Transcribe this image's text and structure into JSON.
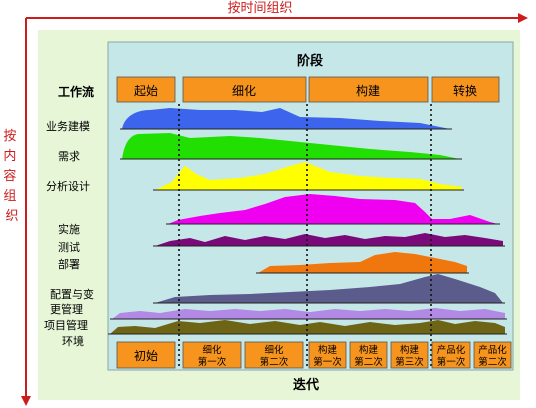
{
  "axes": {
    "time_label": "按时间组织",
    "content_label": "按内容组织"
  },
  "header": {
    "title": "阶段",
    "workflow_label": "工作流"
  },
  "phases": [
    "起始",
    "细化",
    "构建",
    "转换"
  ],
  "workflows": {
    "business_modeling": "业务建模",
    "requirements": "需求",
    "analysis_design": "分析设计",
    "implementation": "实施",
    "test": "测试",
    "deployment": "部署",
    "config_change_line1": "配置与变",
    "config_change_line2": "更管理",
    "project_management": "项目管理",
    "environment": "环境"
  },
  "iterations": [
    {
      "line1": "初始",
      "line2": ""
    },
    {
      "line1": "细化",
      "line2": "第一次"
    },
    {
      "line1": "细化",
      "line2": "第二次"
    },
    {
      "line1": "构建",
      "line2": "第一次"
    },
    {
      "line1": "构建",
      "line2": "第二次"
    },
    {
      "line1": "构建",
      "line2": "第三次"
    },
    {
      "line1": "产品化",
      "line2": "第一次"
    },
    {
      "line1": "产品化",
      "line2": "第二次"
    }
  ],
  "footer": {
    "iteration_label": "迭代"
  },
  "colors": {
    "axis_red": "#cc1d1d",
    "outer_green": "#e6f6d6",
    "inner_cyan": "#c6e7e8",
    "phase_orange": "#f7941d",
    "business_modeling": "#3c64ec",
    "requirements": "#21df00",
    "analysis_design": "#ffff00",
    "implementation": "#f000f0",
    "test": "#7a0a7a",
    "deployment": "#f0770d",
    "config_change": "#5b5b8c",
    "project_management": "#b389e6",
    "environment": "#6d6515"
  }
}
